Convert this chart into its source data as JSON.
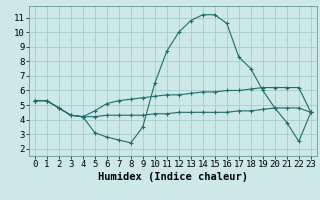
{
  "background_color": "#cce8e8",
  "grid_color": "#aacccc",
  "line_color": "#1a6e6e",
  "xlabel": "Humidex (Indice chaleur)",
  "xlim": [
    -0.5,
    23.5
  ],
  "ylim": [
    1.5,
    11.8
  ],
  "xticks": [
    0,
    1,
    2,
    3,
    4,
    5,
    6,
    7,
    8,
    9,
    10,
    11,
    12,
    13,
    14,
    15,
    16,
    17,
    18,
    19,
    20,
    21,
    22,
    23
  ],
  "yticks": [
    2,
    3,
    4,
    5,
    6,
    7,
    8,
    9,
    10,
    11
  ],
  "series1_x": [
    0,
    1,
    2,
    3,
    4,
    5,
    6,
    7,
    8,
    9,
    10,
    11,
    12,
    13,
    14,
    15,
    16,
    17,
    18,
    19,
    20,
    21,
    22,
    23
  ],
  "series1_y": [
    5.3,
    5.3,
    4.8,
    4.3,
    4.2,
    4.6,
    5.1,
    5.3,
    5.4,
    5.5,
    5.6,
    5.7,
    5.7,
    5.8,
    5.9,
    5.9,
    6.0,
    6.0,
    6.1,
    6.2,
    6.2,
    6.2,
    6.2,
    4.5
  ],
  "series2_x": [
    0,
    1,
    2,
    3,
    4,
    5,
    6,
    7,
    8,
    9,
    10,
    11,
    12,
    13,
    14,
    15,
    16,
    17,
    18,
    19,
    20,
    21,
    22,
    23
  ],
  "series2_y": [
    5.3,
    5.3,
    4.8,
    4.3,
    4.2,
    4.2,
    4.3,
    4.3,
    4.3,
    4.3,
    4.4,
    4.4,
    4.5,
    4.5,
    4.5,
    4.5,
    4.5,
    4.6,
    4.6,
    4.7,
    4.8,
    4.8,
    4.8,
    4.5
  ],
  "series3_x": [
    0,
    1,
    2,
    3,
    4,
    5,
    6,
    7,
    8,
    9,
    10,
    11,
    12,
    13,
    14,
    15,
    16,
    17,
    18,
    19,
    20,
    21,
    22,
    23
  ],
  "series3_y": [
    5.3,
    5.3,
    4.8,
    4.3,
    4.2,
    3.1,
    2.8,
    2.6,
    2.4,
    3.5,
    6.5,
    8.7,
    10.0,
    10.8,
    11.2,
    11.2,
    10.6,
    8.3,
    7.5,
    6.0,
    4.8,
    3.8,
    2.5,
    4.5
  ],
  "tick_fontsize": 6.5,
  "label_fontsize": 7.5
}
